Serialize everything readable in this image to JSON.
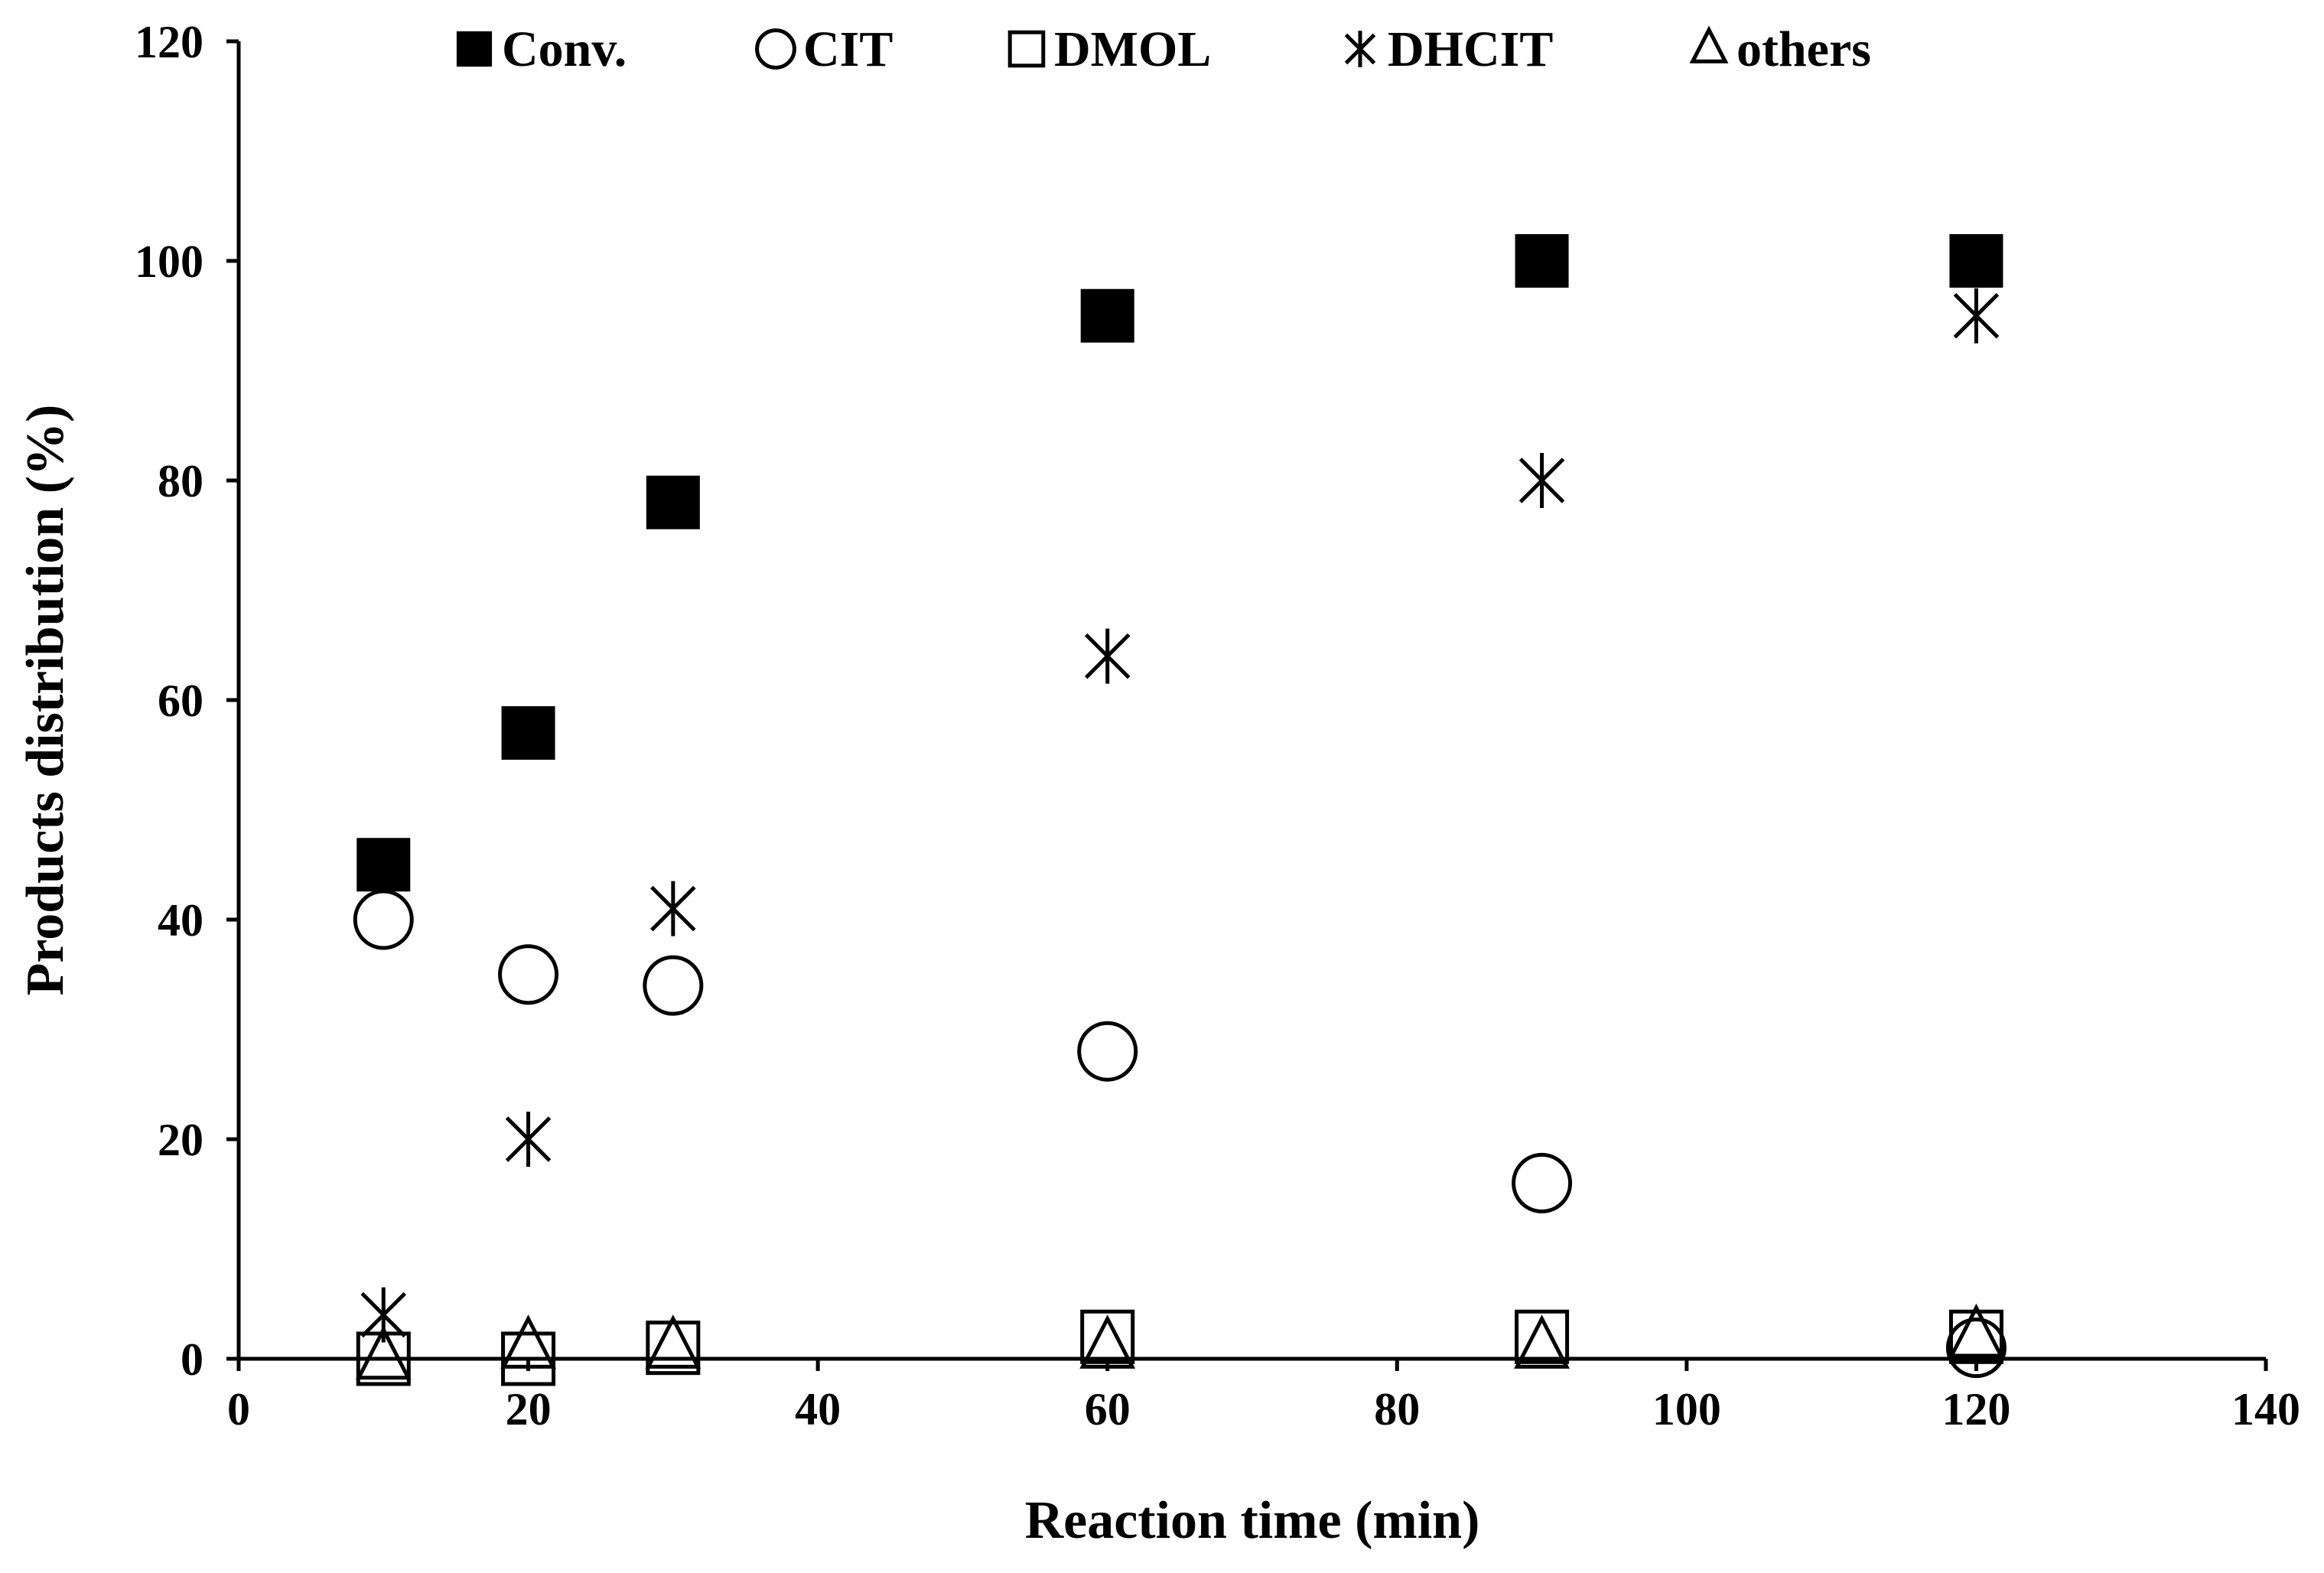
{
  "chart_data": {
    "type": "scatter",
    "title": "",
    "xlabel": "Reaction time (min)",
    "ylabel": "Products distribution (%)",
    "xlim": [
      0,
      140
    ],
    "ylim": [
      0,
      120
    ],
    "xticks": [
      0,
      20,
      40,
      60,
      80,
      100,
      120,
      140
    ],
    "yticks": [
      0,
      20,
      40,
      60,
      80,
      100,
      120
    ],
    "grid": false,
    "legend_position": "top",
    "x": [
      10,
      20,
      30,
      60,
      90,
      120
    ],
    "series": [
      {
        "name": "Conv.",
        "marker": "filled-square",
        "color": "#000000",
        "values": [
          45,
          57,
          78,
          95,
          100,
          100
        ]
      },
      {
        "name": "CIT",
        "marker": "open-circle",
        "color": "#000000",
        "values": [
          40,
          35,
          34,
          28,
          16,
          1
        ]
      },
      {
        "name": "DMOL",
        "marker": "open-square",
        "color": "#000000",
        "values": [
          0,
          0,
          1,
          2,
          2,
          2
        ]
      },
      {
        "name": "DHCIT",
        "marker": "asterisk",
        "color": "#000000",
        "values": [
          4,
          20,
          41,
          64,
          80,
          95
        ]
      },
      {
        "name": "others",
        "marker": "open-triangle",
        "color": "#000000",
        "values": [
          0,
          1,
          1,
          1,
          1,
          2
        ]
      }
    ]
  }
}
